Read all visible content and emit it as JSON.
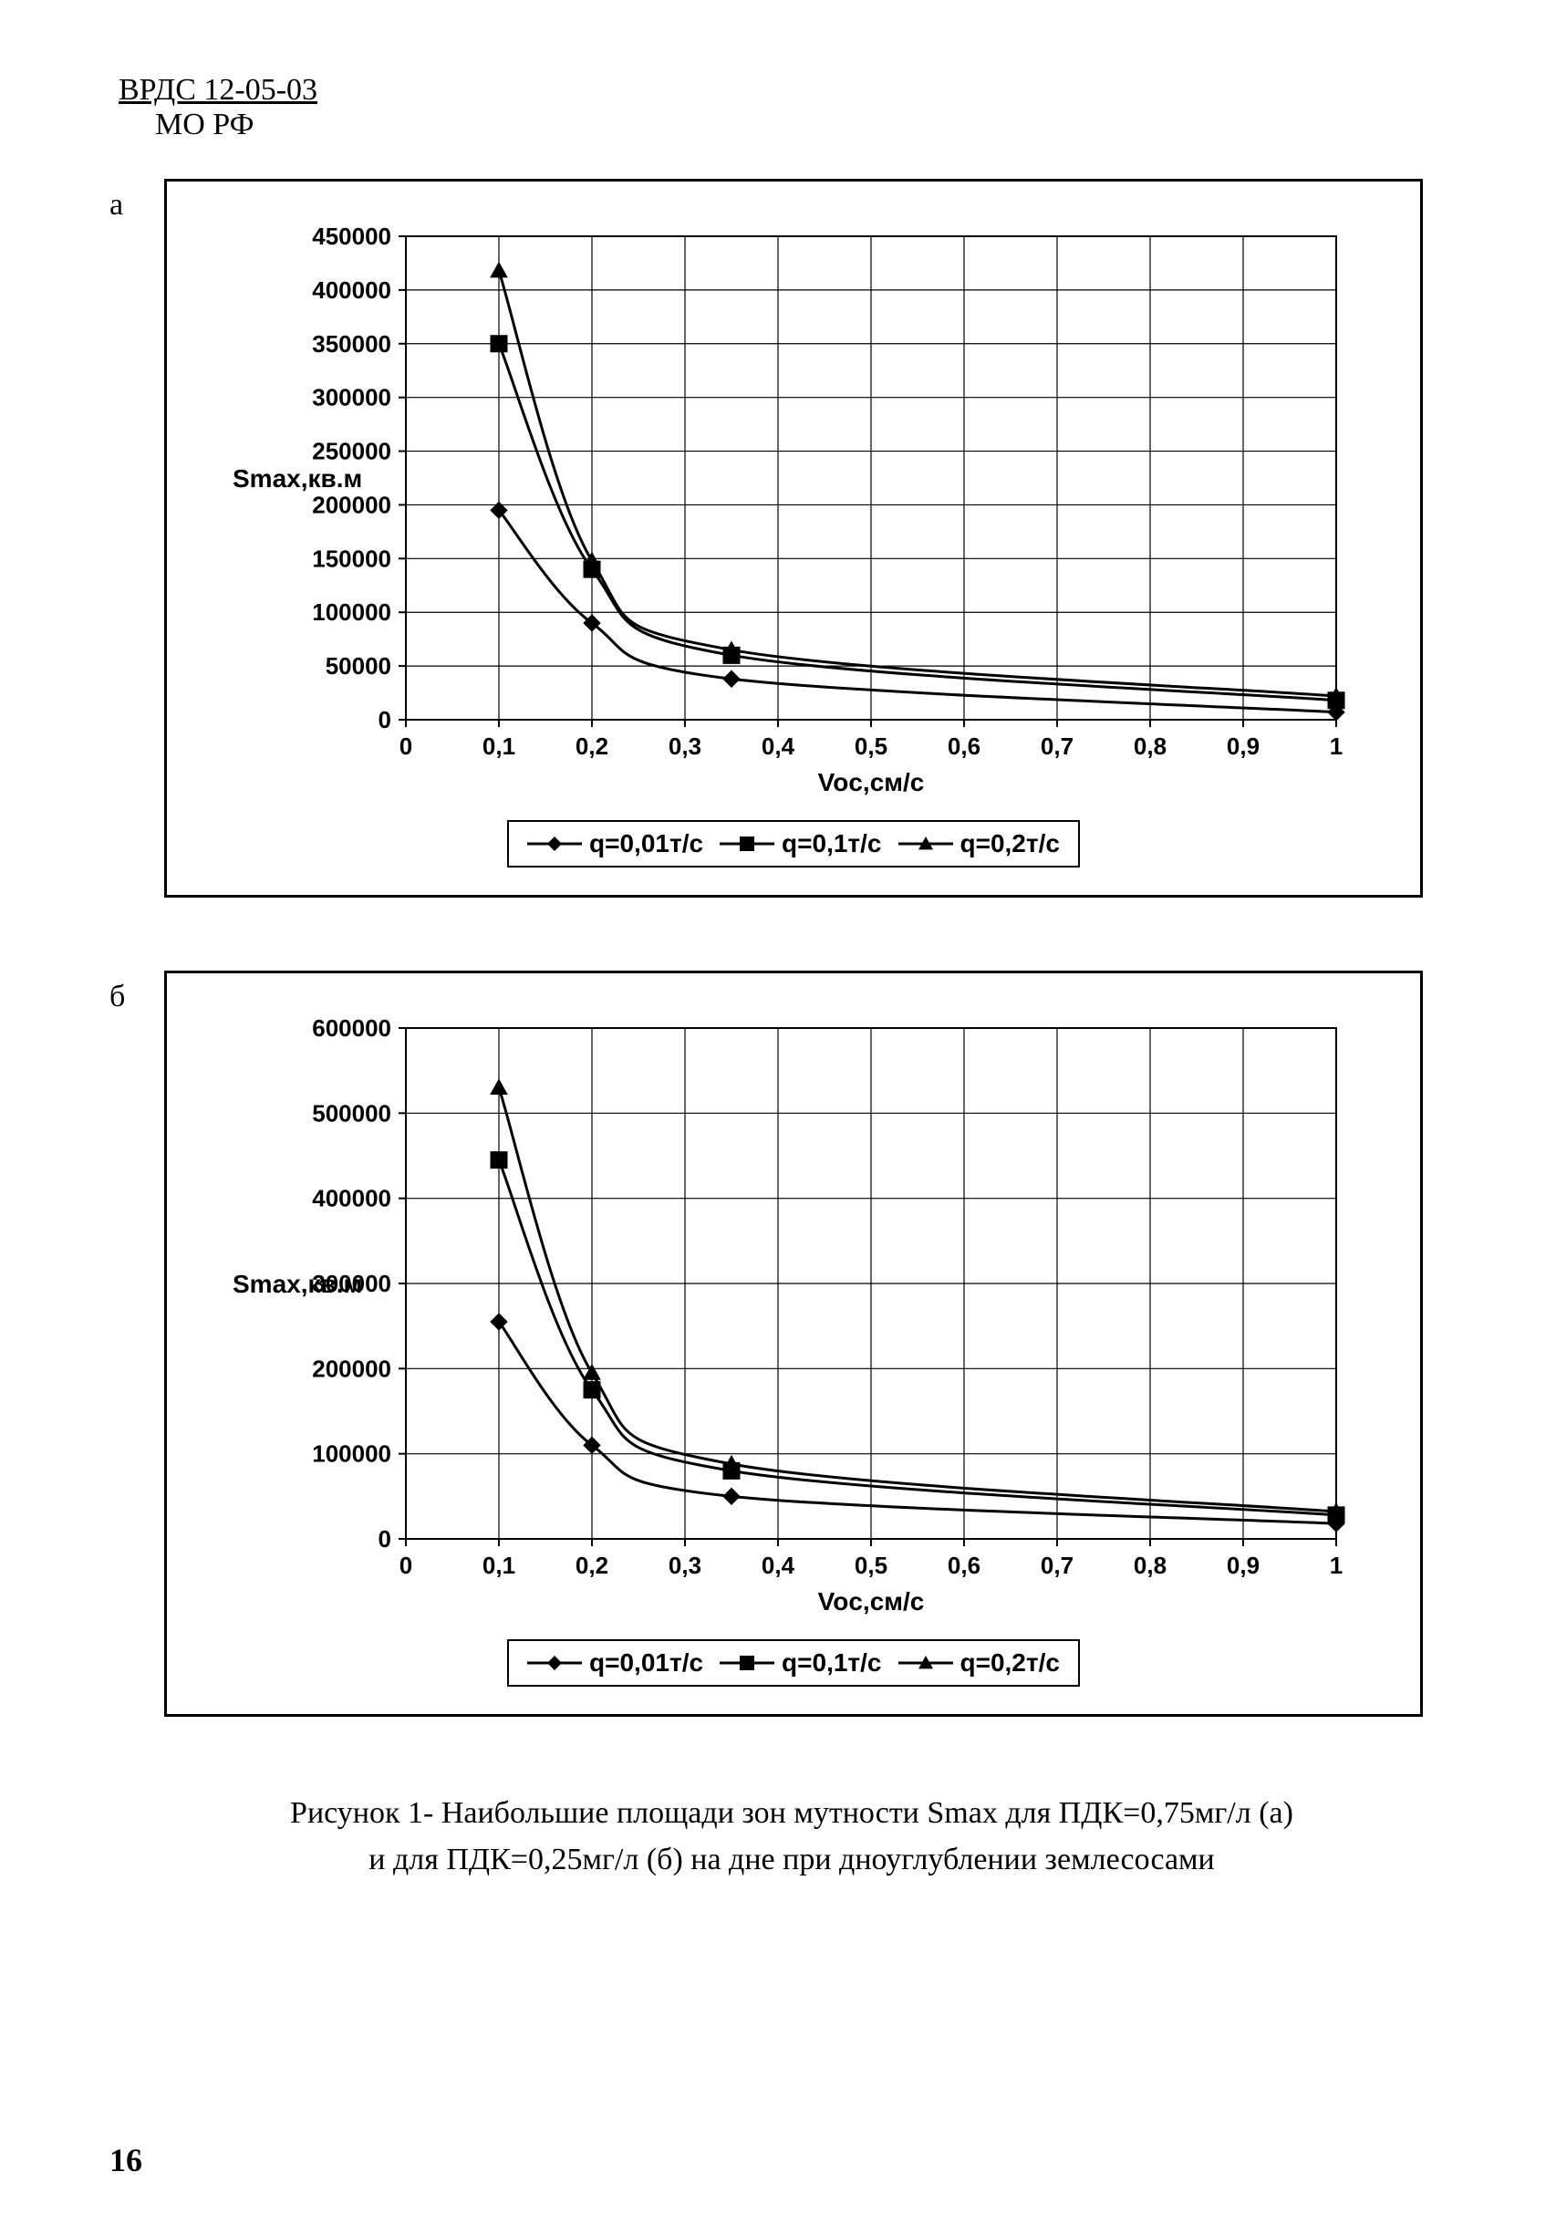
{
  "header": {
    "line1": "ВРДС 12-05-03",
    "line2": "МО РФ"
  },
  "chart_a": {
    "panel_label": "а",
    "type": "line",
    "xlabel": "Voc,см/с",
    "ylabel": "Smax,кв.м",
    "xlim": [
      0,
      1
    ],
    "ylim": [
      0,
      450000
    ],
    "xtick_step": 0.1,
    "ytick_step": 50000,
    "xticks": [
      "0",
      "0,1",
      "0,2",
      "0,3",
      "0,4",
      "0,5",
      "0,6",
      "0,7",
      "0,8",
      "0,9",
      "1"
    ],
    "yticks": [
      "0",
      "50000",
      "100000",
      "150000",
      "200000",
      "250000",
      "300000",
      "350000",
      "400000",
      "450000"
    ],
    "background_color": "#ffffff",
    "grid_color": "#000000",
    "grid_linewidth": 1.2,
    "axis_linewidth": 2,
    "label_fontsize": 28,
    "tick_fontsize": 26,
    "series": [
      {
        "name": "q=0,01т/с",
        "marker": "diamond",
        "color": "#000000",
        "linewidth": 3,
        "data": [
          {
            "x": 0.1,
            "y": 195000
          },
          {
            "x": 0.2,
            "y": 90000
          },
          {
            "x": 0.35,
            "y": 38000
          },
          {
            "x": 1.0,
            "y": 7000
          }
        ]
      },
      {
        "name": "q=0,1т/с",
        "marker": "square",
        "color": "#000000",
        "linewidth": 3,
        "data": [
          {
            "x": 0.1,
            "y": 350000
          },
          {
            "x": 0.2,
            "y": 140000
          },
          {
            "x": 0.35,
            "y": 60000
          },
          {
            "x": 1.0,
            "y": 18000
          }
        ]
      },
      {
        "name": "q=0,2т/с",
        "marker": "triangle",
        "color": "#000000",
        "linewidth": 3,
        "data": [
          {
            "x": 0.1,
            "y": 418000
          },
          {
            "x": 0.2,
            "y": 148000
          },
          {
            "x": 0.35,
            "y": 65000
          },
          {
            "x": 1.0,
            "y": 22000
          }
        ]
      }
    ],
    "legend": {
      "items": [
        "q=0,01т/с",
        "q=0,1т/с",
        "q=0,2т/с"
      ],
      "markers": [
        "diamond",
        "square",
        "triangle"
      ],
      "border_color": "#000000",
      "fontsize": 28
    }
  },
  "chart_b": {
    "panel_label": "б",
    "type": "line",
    "xlabel": "Voc,см/с",
    "ylabel": "Smax,кв.м",
    "xlim": [
      0,
      1
    ],
    "ylim": [
      0,
      600000
    ],
    "xtick_step": 0.1,
    "ytick_step": 100000,
    "xticks": [
      "0",
      "0,1",
      "0,2",
      "0,3",
      "0,4",
      "0,5",
      "0,6",
      "0,7",
      "0,8",
      "0,9",
      "1"
    ],
    "yticks": [
      "0",
      "100000",
      "200000",
      "300000",
      "400000",
      "500000",
      "600000"
    ],
    "background_color": "#ffffff",
    "grid_color": "#000000",
    "grid_linewidth": 1.2,
    "axis_linewidth": 2,
    "label_fontsize": 28,
    "tick_fontsize": 26,
    "series": [
      {
        "name": "q=0,01т/с",
        "marker": "diamond",
        "color": "#000000",
        "linewidth": 3,
        "data": [
          {
            "x": 0.1,
            "y": 255000
          },
          {
            "x": 0.2,
            "y": 110000
          },
          {
            "x": 0.35,
            "y": 50000
          },
          {
            "x": 1.0,
            "y": 18000
          }
        ]
      },
      {
        "name": "q=0,1т/с",
        "marker": "square",
        "color": "#000000",
        "linewidth": 3,
        "data": [
          {
            "x": 0.1,
            "y": 445000
          },
          {
            "x": 0.2,
            "y": 175000
          },
          {
            "x": 0.35,
            "y": 80000
          },
          {
            "x": 1.0,
            "y": 28000
          }
        ]
      },
      {
        "name": "q=0,2т/с",
        "marker": "triangle",
        "color": "#000000",
        "linewidth": 3,
        "data": [
          {
            "x": 0.1,
            "y": 530000
          },
          {
            "x": 0.2,
            "y": 195000
          },
          {
            "x": 0.35,
            "y": 88000
          },
          {
            "x": 1.0,
            "y": 32000
          }
        ]
      }
    ],
    "legend": {
      "items": [
        "q=0,01т/с",
        "q=0,1т/с",
        "q=0,2т/с"
      ],
      "markers": [
        "diamond",
        "square",
        "triangle"
      ],
      "border_color": "#000000",
      "fontsize": 28
    }
  },
  "caption": {
    "line1": "Рисунок 1- Наибольшие площади зон мутности Smax для ПДК=0,75мг/л (а)",
    "line2": "и для ПДК=0,25мг/л (б) на дне при дноуглублении землесосами"
  },
  "page_number": "16"
}
